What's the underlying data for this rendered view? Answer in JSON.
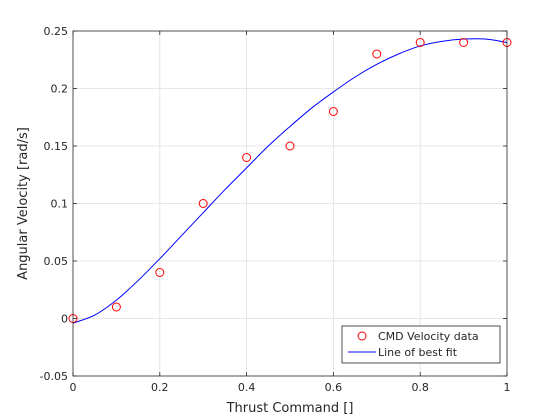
{
  "chart_data": {
    "type": "scatter",
    "title": "",
    "xlabel": "Thrust Command []",
    "ylabel": "Angular Velocity [rad/s]",
    "xlim": [
      0,
      1
    ],
    "ylim": [
      -0.05,
      0.25
    ],
    "xticks": [
      0,
      0.2,
      0.4,
      0.6,
      0.8,
      1
    ],
    "xtick_labels": [
      "0",
      "0.2",
      "0.4",
      "0.6",
      "0.8",
      "1"
    ],
    "yticks": [
      -0.05,
      0,
      0.05,
      0.1,
      0.15,
      0.2,
      0.25
    ],
    "ytick_labels": [
      "-0.05",
      "0",
      "0.05",
      "0.1",
      "0.15",
      "0.2",
      "0.25"
    ],
    "grid": true,
    "legend_position": "bottom-right",
    "series": [
      {
        "name": "CMD Velocity data",
        "kind": "markers",
        "marker": "open-circle",
        "color": "#ff0000",
        "x": [
          0,
          0.1,
          0.2,
          0.3,
          0.4,
          0.5,
          0.6,
          0.7,
          0.8,
          0.9,
          1.0
        ],
        "y": [
          0,
          0.01,
          0.04,
          0.1,
          0.14,
          0.15,
          0.18,
          0.23,
          0.24,
          0.24,
          0.24
        ]
      },
      {
        "name": "Line of best fit",
        "kind": "line",
        "color": "#0000ff",
        "x": [
          0,
          0.05,
          0.1,
          0.15,
          0.2,
          0.25,
          0.3,
          0.35,
          0.4,
          0.45,
          0.5,
          0.55,
          0.6,
          0.65,
          0.7,
          0.75,
          0.8,
          0.85,
          0.9,
          0.95,
          1.0
        ],
        "y": [
          -0.004,
          0.003,
          0.016,
          0.033,
          0.052,
          0.072,
          0.092,
          0.112,
          0.131,
          0.15,
          0.167,
          0.183,
          0.197,
          0.21,
          0.221,
          0.23,
          0.237,
          0.241,
          0.243,
          0.243,
          0.24
        ]
      }
    ]
  }
}
